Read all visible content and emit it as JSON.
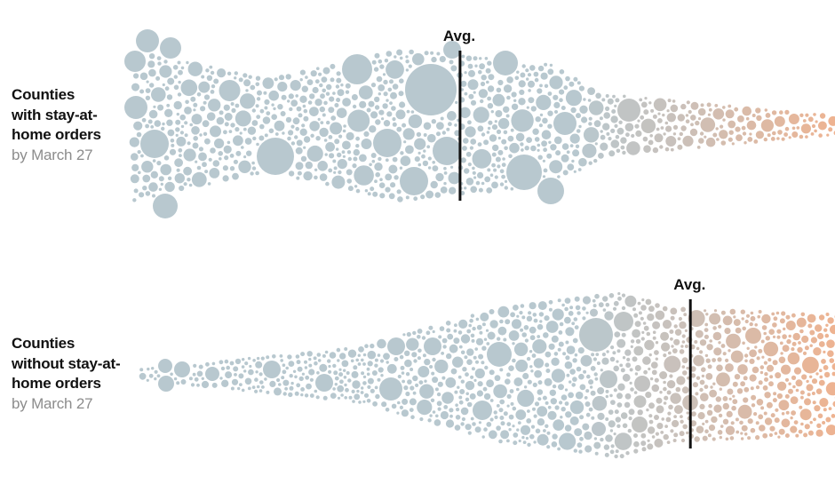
{
  "chart_data": {
    "type": "scatter",
    "title": "",
    "xlabel": "",
    "ylabel": "",
    "avg_label": "Avg.",
    "groups": [
      {
        "label_bold": [
          "Counties",
          "with stay-at-",
          "home orders"
        ],
        "label_sub": "by March 27",
        "avg_position": 0.466
      },
      {
        "label_bold": [
          "Counties",
          "without stay-at-",
          "home orders"
        ],
        "label_sub": "by March 27",
        "avg_position": 0.791
      }
    ],
    "colors": {
      "low": "#b8c8cf",
      "mid": "#c9c1bb",
      "high": "#eeb391",
      "avg_line": "#111111"
    }
  }
}
